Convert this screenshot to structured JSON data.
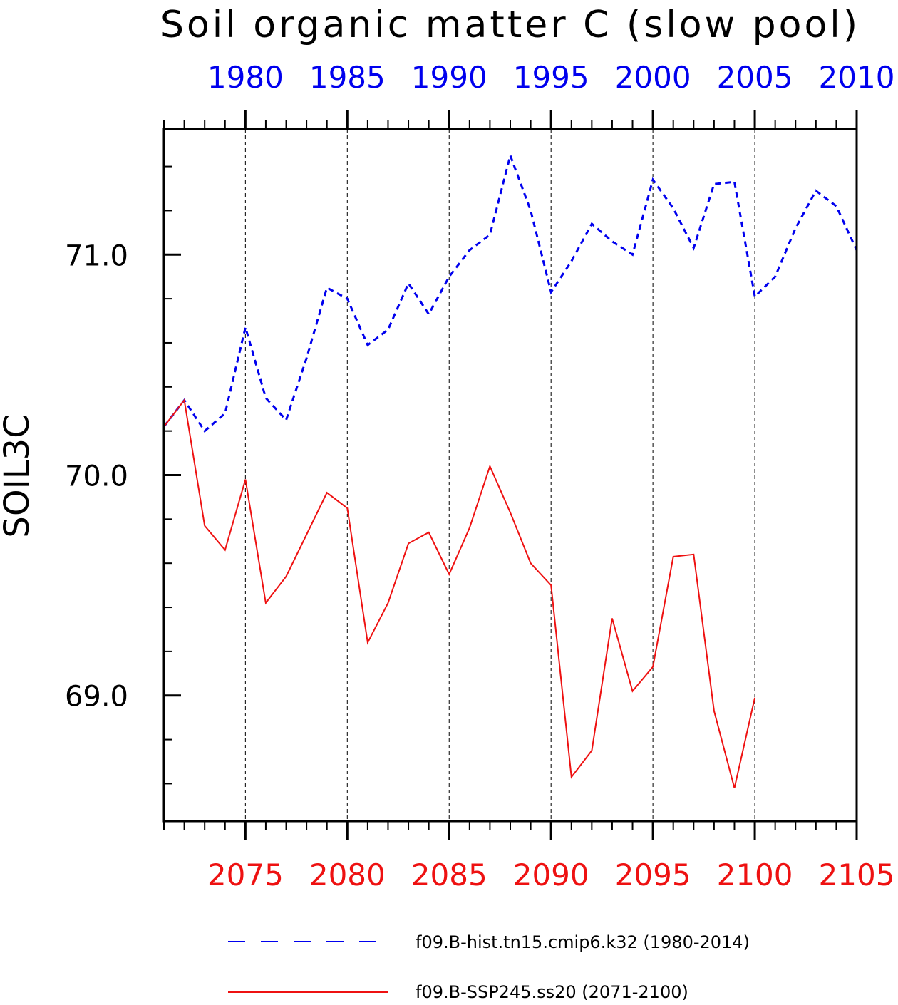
{
  "chart_data": {
    "type": "line",
    "title": "Soil organic matter C (slow pool)",
    "ylabel": "SOIL3C",
    "ylim": [
      68.43,
      71.57
    ],
    "yticks": [
      69.0,
      70.0,
      71.0
    ],
    "ytick_labels": [
      "69.0",
      "70.0",
      "71.0"
    ],
    "grid": "vertical dashed at labeled x ticks",
    "legend_position": "bottom",
    "axes": {
      "top": {
        "range": [
          1976,
          2010
        ],
        "ticks": [
          1980,
          1985,
          1990,
          1995,
          2000,
          2005,
          2010
        ],
        "tick_labels": [
          "1980",
          "1985",
          "1990",
          "1995",
          "2000",
          "2005",
          "2010"
        ],
        "color": "#0000ee"
      },
      "bottom": {
        "range": [
          2071,
          2105
        ],
        "ticks": [
          2075,
          2080,
          2085,
          2090,
          2095,
          2100,
          2105
        ],
        "tick_labels": [
          "2075",
          "2080",
          "2085",
          "2090",
          "2095",
          "2100",
          "2105"
        ],
        "color": "#ee1111"
      }
    },
    "series": [
      {
        "name": "f09.B-hist.tn15.cmip6.k32 (1980-2014)",
        "axis": "top",
        "color": "#0000ee",
        "style": "dashed",
        "x": [
          1976,
          1977,
          1978,
          1979,
          1980,
          1981,
          1982,
          1983,
          1984,
          1985,
          1986,
          1987,
          1988,
          1989,
          1990,
          1991,
          1992,
          1993,
          1994,
          1995,
          1996,
          1997,
          1998,
          1999,
          2000,
          2001,
          2002,
          2003,
          2004,
          2005,
          2006,
          2007,
          2008,
          2009,
          2010
        ],
        "values": [
          70.22,
          70.34,
          70.2,
          70.28,
          70.67,
          70.35,
          70.25,
          70.53,
          70.85,
          70.8,
          70.59,
          70.66,
          70.87,
          70.73,
          70.9,
          71.02,
          71.09,
          71.45,
          71.2,
          70.83,
          70.97,
          71.14,
          71.06,
          71.0,
          71.34,
          71.21,
          71.03,
          71.32,
          71.33,
          70.81,
          70.9,
          71.12,
          71.29,
          71.22,
          71.02
        ]
      },
      {
        "name": "f09.B-SSP245.ss20 (2071-2100)",
        "axis": "bottom",
        "color": "#ee1111",
        "style": "solid",
        "x": [
          2071,
          2072,
          2073,
          2074,
          2075,
          2076,
          2077,
          2078,
          2079,
          2080,
          2081,
          2082,
          2083,
          2084,
          2085,
          2086,
          2087,
          2088,
          2089,
          2090,
          2091,
          2092,
          2093,
          2094,
          2095,
          2096,
          2097,
          2098,
          2099,
          2100
        ],
        "values": [
          70.22,
          70.34,
          69.77,
          69.66,
          69.98,
          69.42,
          69.54,
          69.73,
          69.92,
          69.85,
          69.24,
          69.42,
          69.69,
          69.74,
          69.55,
          69.76,
          70.04,
          69.83,
          69.6,
          69.5,
          68.63,
          68.75,
          69.35,
          69.02,
          69.13,
          69.63,
          69.64,
          68.93,
          68.58,
          68.99
        ]
      }
    ]
  }
}
